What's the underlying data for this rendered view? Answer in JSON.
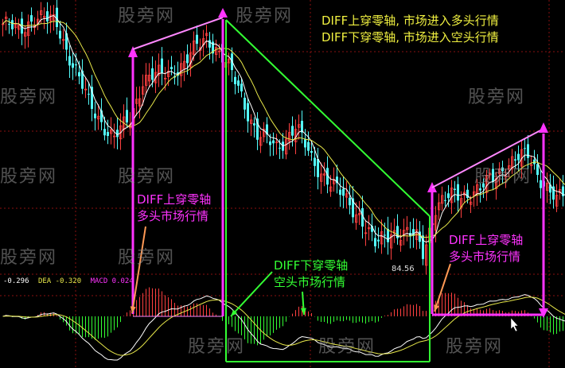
{
  "chart_data": {
    "type": "candlestick",
    "title": "",
    "xlabel": "",
    "ylabel": "",
    "grid": true,
    "close_keypoints": [
      {
        "bar": 0,
        "close": 130.2
      },
      {
        "bar": 5,
        "close": 128.6
      },
      {
        "bar": 10,
        "close": 131.8
      },
      {
        "bar": 17,
        "close": 130.2
      },
      {
        "bar": 22,
        "close": 122.2
      },
      {
        "bar": 27,
        "close": 114.3
      },
      {
        "bar": 35,
        "close": 107.1
      },
      {
        "bar": 40,
        "close": 111.1
      },
      {
        "bar": 44,
        "close": 119.1
      },
      {
        "bar": 50,
        "close": 119.9
      },
      {
        "bar": 57,
        "close": 122.2
      },
      {
        "bar": 64,
        "close": 127.8
      },
      {
        "bar": 67,
        "close": 125.4
      },
      {
        "bar": 70,
        "close": 122.2
      },
      {
        "bar": 74,
        "close": 117.5
      },
      {
        "bar": 80,
        "close": 107.9
      },
      {
        "bar": 86,
        "close": 105.5
      },
      {
        "bar": 92,
        "close": 109.5
      },
      {
        "bar": 97,
        "close": 103.1
      },
      {
        "bar": 105,
        "close": 96.7
      },
      {
        "bar": 112,
        "close": 92.0
      },
      {
        "bar": 117,
        "close": 85.6
      },
      {
        "bar": 122,
        "close": 88.8
      },
      {
        "bar": 130,
        "close": 87.2
      },
      {
        "bar": 132,
        "close": 84.56
      },
      {
        "bar": 136,
        "close": 93.5
      },
      {
        "bar": 142,
        "close": 95.9
      },
      {
        "bar": 150,
        "close": 96.7
      },
      {
        "bar": 157,
        "close": 101.5
      },
      {
        "bar": 165,
        "close": 103.9
      },
      {
        "bar": 170,
        "close": 98.3
      },
      {
        "bar": 174,
        "close": 94.3
      },
      {
        "bar": 177,
        "close": 96.7
      }
    ],
    "low_label": "84.56",
    "moving_averages": [
      {
        "color": "#ffffff"
      },
      {
        "color": "#e8e84a"
      }
    ],
    "indicator": {
      "diff_value": "-0.296",
      "dea_label": "DEA",
      "dea_value": "-0.320",
      "macd_label": "MACD",
      "macd_value": "0.024"
    }
  },
  "colors": {
    "up": "#ff4040",
    "down": "#54fcfc",
    "magenta": "#ff33ff",
    "pink": "#ff88ff",
    "green": "#33ff33",
    "orange": "#ff9955",
    "yellow_text": "#f0f040",
    "grid": "#8a1010"
  },
  "watermark": "股旁网",
  "notes": {
    "top_line1": "DIFF上穿零轴, 市场进入多头行情",
    "top_line2": "DIFF下穿零轴, 市场进入空头行情",
    "left_line1": "DIFF上穿零轴",
    "left_line2": "多头市场行情",
    "mid_line1": "DIFF下穿零轴",
    "mid_line2": "空头市场行情",
    "right_line1": "DIFF上穿零轴",
    "right_line2": "多头市场行情"
  }
}
